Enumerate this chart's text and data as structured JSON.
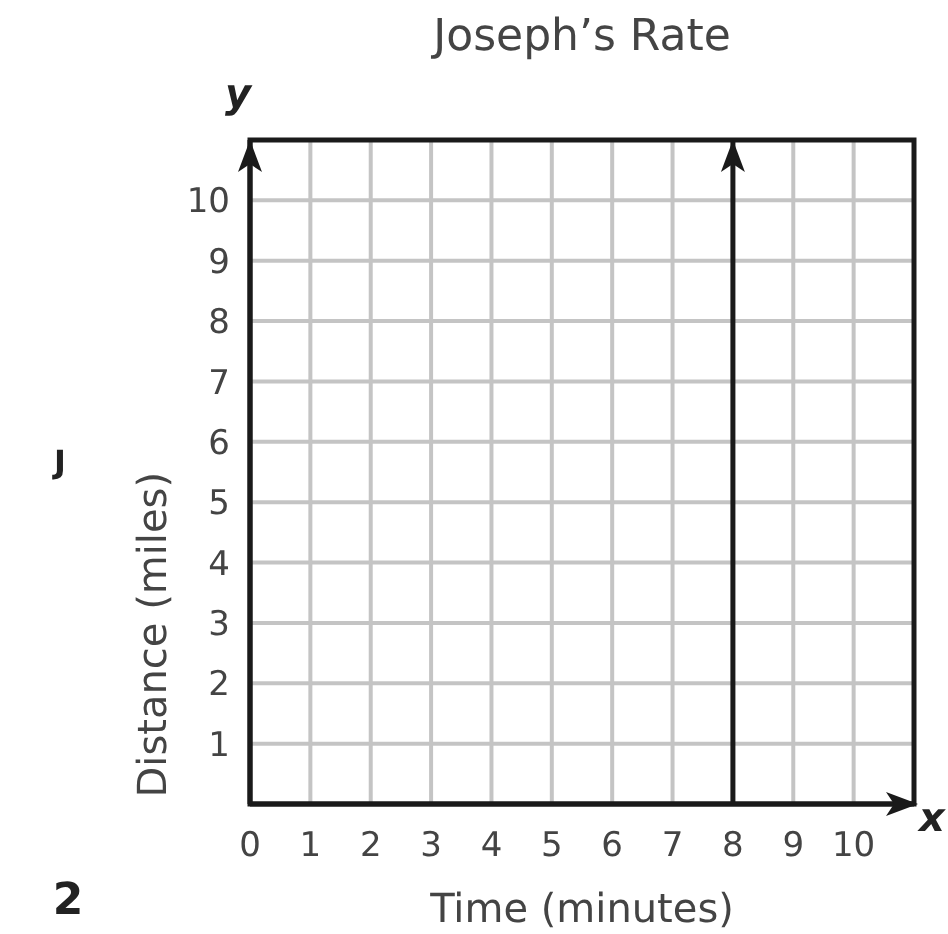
{
  "chart_data": {
    "type": "line",
    "title": "Joseph’s Rate",
    "xlabel": "Time (minutes)",
    "ylabel": "Distance (miles)",
    "annotations": [
      "y",
      "x",
      "J",
      "2"
    ],
    "x": [
      8,
      8
    ],
    "series": [
      {
        "color": "#1a1a1a",
        "values": [
          0,
          11
        ]
      }
    ],
    "xlim": [
      0,
      11
    ],
    "ylim": [
      0,
      11
    ],
    "xticks": [
      0,
      1,
      2,
      3,
      4,
      5,
      6,
      7,
      8,
      9,
      10,
      {
        "value": 11,
        "label": null
      }
    ],
    "yticks": [
      {
        "value": 0,
        "label": null
      },
      1,
      2,
      3,
      4,
      5,
      6,
      7,
      8,
      9,
      10,
      {
        "value": 11,
        "label": null
      }
    ],
    "grid": true,
    "marker": "none",
    "line_style": "solid"
  }
}
